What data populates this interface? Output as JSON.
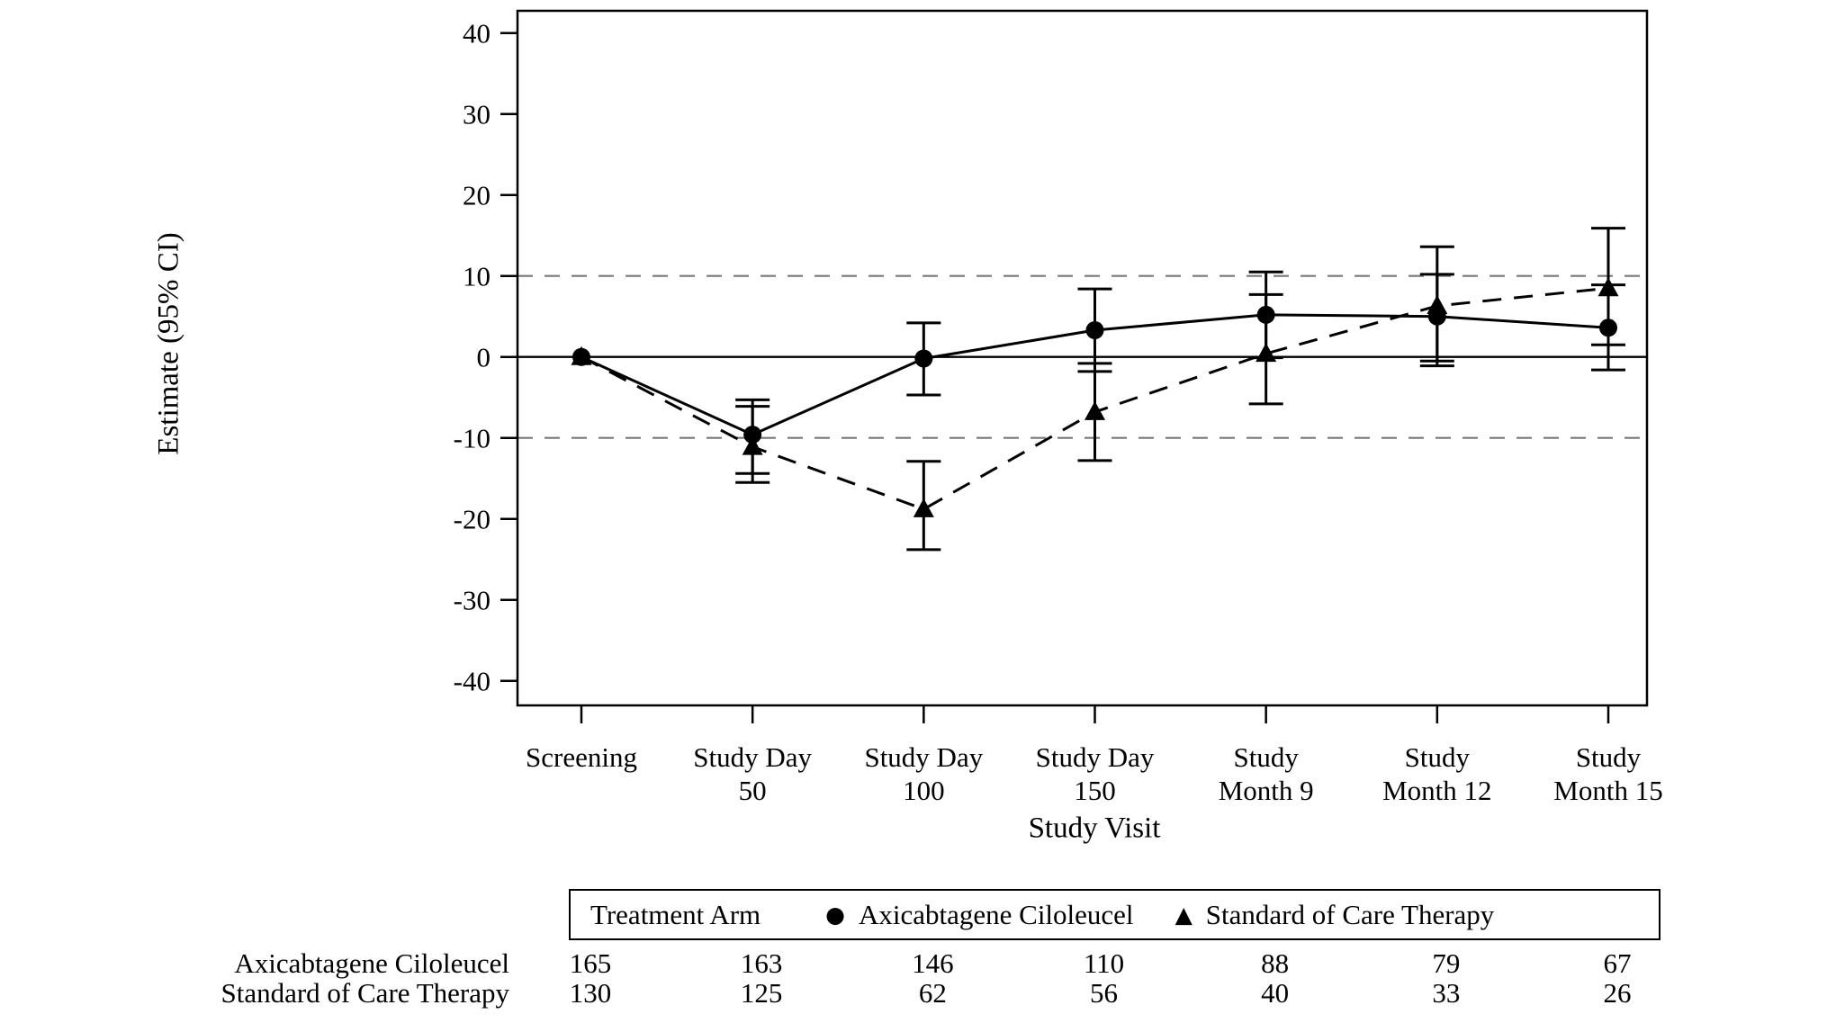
{
  "figure": {
    "background": "#ffffff",
    "text_color": "#000000"
  },
  "chart_data": {
    "type": "line",
    "title": "",
    "xlabel": "Study Visit",
    "ylabel": "Estimate (95% CI)",
    "ylim": [
      -43,
      43
    ],
    "yticks": [
      40,
      30,
      20,
      10,
      0,
      -10,
      -20,
      -30,
      -40
    ],
    "grid": false,
    "reference_lines": [
      {
        "y": 10,
        "style": "dashed",
        "color": "#787878"
      },
      {
        "y": 0,
        "style": "solid",
        "color": "#000000"
      },
      {
        "y": -10,
        "style": "dashed",
        "color": "#787878"
      }
    ],
    "categories": [
      {
        "line1": "Screening",
        "line2": ""
      },
      {
        "line1": "Study Day",
        "line2": "50"
      },
      {
        "line1": "Study Day",
        "line2": "100"
      },
      {
        "line1": "Study Day",
        "line2": "150"
      },
      {
        "line1": "Study",
        "line2": "Month 9"
      },
      {
        "line1": "Study",
        "line2": "Month 12"
      },
      {
        "line1": "Study",
        "line2": "Month 15"
      }
    ],
    "series": [
      {
        "name": "Axicabtagene Ciloleucel",
        "marker": "circle",
        "line": "solid",
        "color": "#000000",
        "estimates": [
          0,
          -9.6,
          -0.2,
          3.3,
          5.2,
          5.0,
          3.6
        ],
        "ci_lower": [
          null,
          -14.4,
          -4.7,
          -1.8,
          -0.1,
          -1.1,
          -1.6
        ],
        "ci_upper": [
          null,
          -5.3,
          4.2,
          8.4,
          10.5,
          10.2,
          8.9
        ]
      },
      {
        "name": "Standard of Care Therapy",
        "marker": "triangle",
        "line": "dashed",
        "color": "#000000",
        "estimates": [
          0,
          -11.1,
          -18.8,
          -6.8,
          0.4,
          6.3,
          8.5
        ],
        "ci_lower": [
          null,
          -15.5,
          -23.8,
          -12.8,
          -5.8,
          -0.5,
          1.5
        ],
        "ci_upper": [
          null,
          -6.1,
          -12.9,
          -0.8,
          7.7,
          13.6,
          15.9
        ]
      }
    ],
    "legend": {
      "title": "Treatment Arm",
      "position": "bottom"
    },
    "marker_glyphs": {
      "circle": "●",
      "triangle": "▲"
    },
    "at_risk": {
      "rows": [
        {
          "label": "Axicabtagene Ciloleucel",
          "counts": [
            165,
            163,
            146,
            110,
            88,
            79,
            67
          ]
        },
        {
          "label": "Standard of Care Therapy",
          "counts": [
            130,
            125,
            62,
            56,
            40,
            33,
            26
          ]
        }
      ]
    }
  }
}
